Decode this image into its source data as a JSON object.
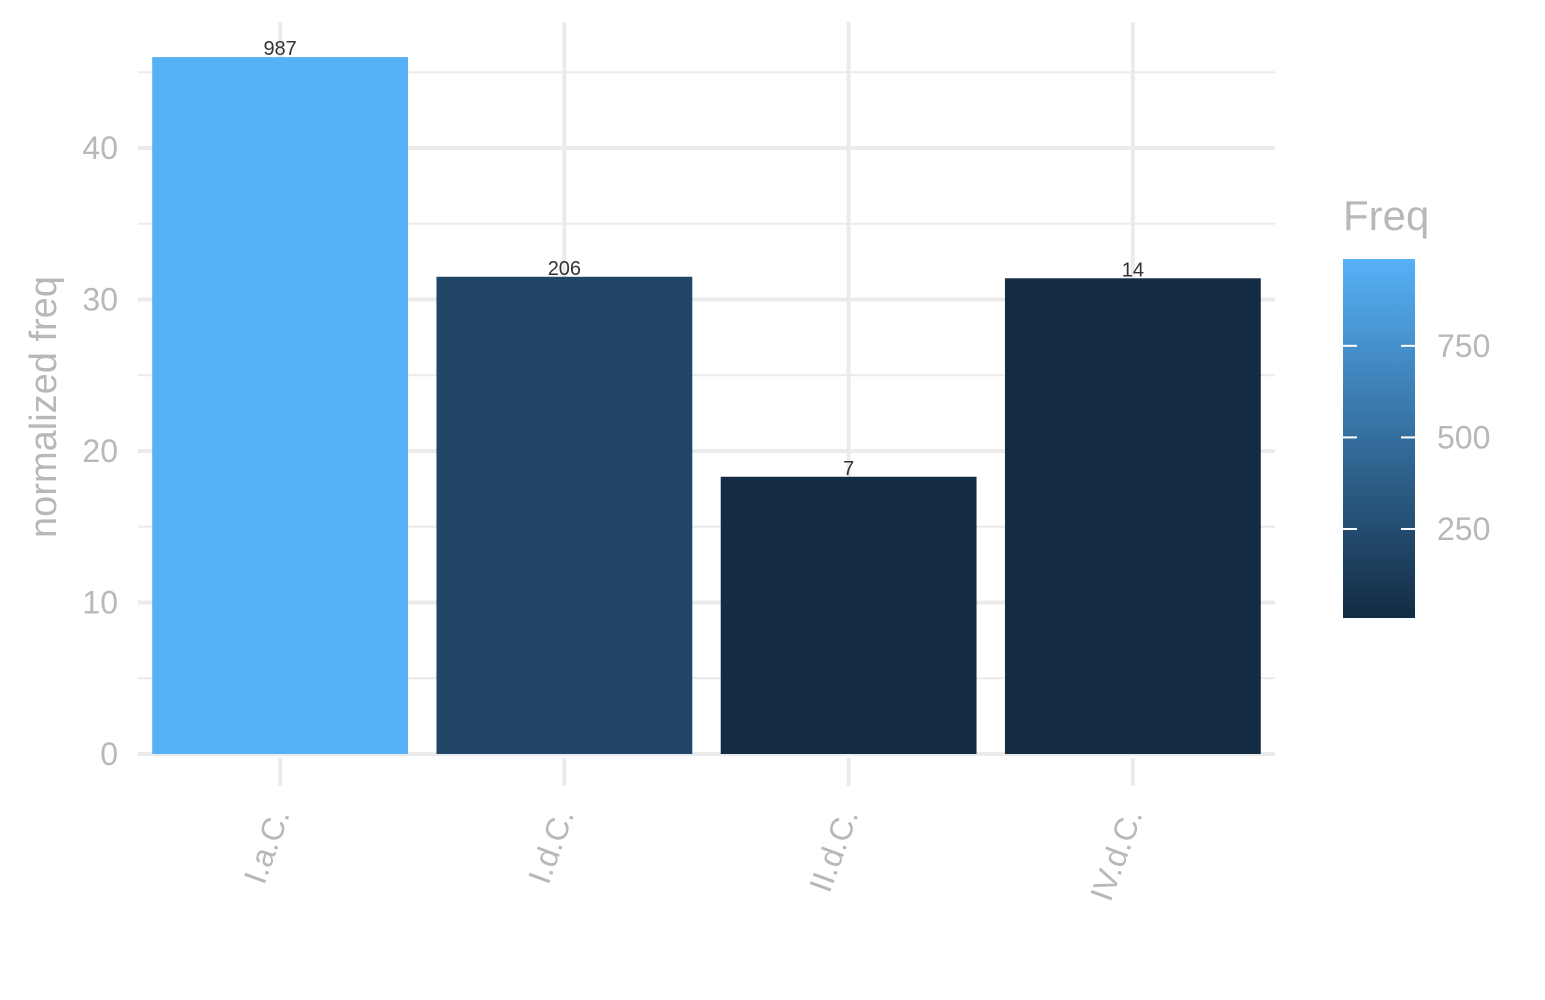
{
  "chart_data": {
    "type": "bar",
    "categories": [
      "I.a.C.",
      "I.d.C.",
      "II.d.C.",
      "IV.d.C."
    ],
    "values": [
      46,
      31.5,
      18.3,
      31.4
    ],
    "data_labels": [
      "987",
      "206",
      "7",
      "14"
    ],
    "fill_values": [
      987,
      206,
      7,
      14
    ],
    "ylabel": "normalized freq",
    "xlabel": "",
    "ylim": [
      0,
      48
    ],
    "y_ticks": [
      0,
      10,
      20,
      30,
      40
    ],
    "y_tick_labels": [
      "0",
      "10",
      "20",
      "30",
      "40"
    ],
    "grid": true,
    "x_tick_label_rotation": "vertical-ish (-70deg)",
    "legend": {
      "title": "Freq",
      "placement": "right",
      "type": "colorbar",
      "range": [
        7,
        987
      ],
      "breaks": [
        250,
        500,
        750
      ],
      "break_labels": [
        "250",
        "500",
        "750"
      ],
      "low_color": "#132b43",
      "high_color": "#56b1f7"
    }
  }
}
